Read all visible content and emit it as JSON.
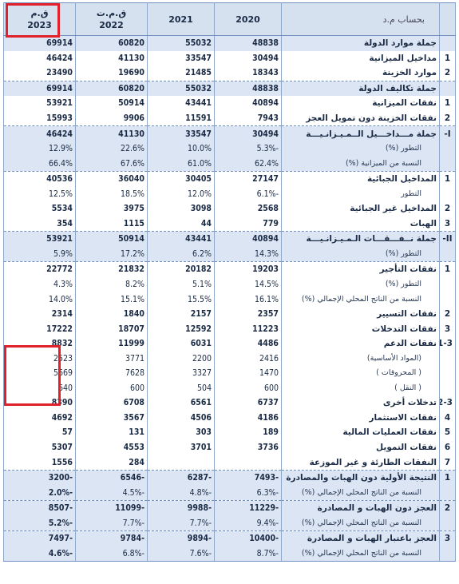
{
  "header": {
    "label": "بحساب م.د",
    "years": [
      {
        "top": "",
        "bottom": "2020"
      },
      {
        "top": "",
        "bottom": "2021"
      },
      {
        "top": "ق.م.ت",
        "bottom": "2022"
      },
      {
        "top": "ق.م",
        "bottom": "2023"
      }
    ]
  },
  "rows": [
    {
      "idx": "",
      "label": "جملة موارد الدولة",
      "v": [
        "48838",
        "55032",
        "60820",
        "69914"
      ],
      "style": "bold shade"
    },
    {
      "idx": "1",
      "label": "مداخيل الميزانية",
      "v": [
        "30494",
        "33547",
        "41130",
        "46424"
      ],
      "style": "bold"
    },
    {
      "idx": "2",
      "label": "موارد الخزينة",
      "v": [
        "18343",
        "21485",
        "19690",
        "23490"
      ],
      "style": "bold dash"
    },
    {
      "idx": "",
      "label": "جملة تكاليف الدولة",
      "v": [
        "48838",
        "55032",
        "60820",
        "69914"
      ],
      "style": "bold shade"
    },
    {
      "idx": "1",
      "label": "نفقات الميزانية",
      "v": [
        "40894",
        "43441",
        "50914",
        "53921"
      ],
      "style": "bold"
    },
    {
      "idx": "2",
      "label": "نفقات الخزينة دون تمويل العجز",
      "v": [
        "7943",
        "11591",
        "9906",
        "15993"
      ],
      "style": "bold dash"
    },
    {
      "idx": "I-",
      "label": "جملة مـــداخـــيل الــمـيـزانـيـــة",
      "v": [
        "30494",
        "33547",
        "41130",
        "46424"
      ],
      "style": "bold shade"
    },
    {
      "idx": "",
      "label": "التطور (%)",
      "v": [
        "-5.3%",
        "10.0%",
        "22.6%",
        "12.9%"
      ],
      "style": "sub shade"
    },
    {
      "idx": "",
      "label": "النسبة من الميزانية (%)",
      "v": [
        "62.4%",
        "61.0%",
        "67.6%",
        "66.4%"
      ],
      "style": "sub shade dash"
    },
    {
      "idx": "1",
      "label": "المداخيل الجبائية",
      "v": [
        "27147",
        "30405",
        "36040",
        "40536"
      ],
      "style": "bold"
    },
    {
      "idx": "",
      "label": "التطور",
      "v": [
        "-6.1%",
        "12.0%",
        "18.5%",
        "12.5%"
      ],
      "style": "sub"
    },
    {
      "idx": "2",
      "label": "المداخيل غير الجبائية",
      "v": [
        "2568",
        "3098",
        "3975",
        "5534"
      ],
      "style": "bold"
    },
    {
      "idx": "3",
      "label": "الهبات",
      "v": [
        "779",
        "44",
        "1115",
        "354"
      ],
      "style": "bold dash"
    },
    {
      "idx": "II-",
      "label": "جملة نــفـــقـــات الـمـيـزانـيـــة",
      "v": [
        "40894",
        "43441",
        "50914",
        "53921"
      ],
      "style": "bold shade"
    },
    {
      "idx": "",
      "label": "التطور (%)",
      "v": [
        "14.3%",
        "6.2%",
        "17.2%",
        "5.9%"
      ],
      "style": "sub shade dash"
    },
    {
      "idx": "1",
      "label": "نفقات التأجير",
      "v": [
        "19203",
        "20182",
        "21832",
        "22772"
      ],
      "style": "bold"
    },
    {
      "idx": "",
      "label": "التطور (%)",
      "v": [
        "14.5%",
        "5.1%",
        "8.2%",
        "4.3%"
      ],
      "style": "sub"
    },
    {
      "idx": "",
      "label": "النسبة من الناتج المحلي الإجمالي (%)",
      "v": [
        "16.1%",
        "15.5%",
        "15.1%",
        "14.0%"
      ],
      "style": "sub"
    },
    {
      "idx": "2",
      "label": "نفقات التسيير",
      "v": [
        "2357",
        "2157",
        "1840",
        "2314"
      ],
      "style": "bold"
    },
    {
      "idx": "3",
      "label": "نفقات التدخلات",
      "v": [
        "11223",
        "12592",
        "18707",
        "17222"
      ],
      "style": "bold"
    },
    {
      "idx": "1-3",
      "label": "نفقات الدعم",
      "v": [
        "4486",
        "6031",
        "11999",
        "8832"
      ],
      "style": "bold"
    },
    {
      "idx": "",
      "label": "(المواد الأساسية)",
      "v": [
        "2416",
        "2200",
        "3771",
        "2523"
      ],
      "style": "sub"
    },
    {
      "idx": "",
      "label": "( المحروقات )",
      "v": [
        "1470",
        "3327",
        "7628",
        "5669"
      ],
      "style": "sub"
    },
    {
      "idx": "",
      "label": "( النقل )",
      "v": [
        "600",
        "504",
        "600",
        "640"
      ],
      "style": "sub"
    },
    {
      "idx": "2-3",
      "label": "تدخلات أخرى",
      "v": [
        "6737",
        "6561",
        "6708",
        "8390"
      ],
      "style": "bold"
    },
    {
      "idx": "4",
      "label": "نفقات الاستثمار",
      "v": [
        "4186",
        "4506",
        "3567",
        "4692"
      ],
      "style": "bold"
    },
    {
      "idx": "5",
      "label": "نفقات العمليات المالية",
      "v": [
        "189",
        "303",
        "131",
        "57"
      ],
      "style": "bold"
    },
    {
      "idx": "6",
      "label": "نفقات التمويل",
      "v": [
        "3736",
        "3701",
        "4553",
        "5307"
      ],
      "style": "bold"
    },
    {
      "idx": "7",
      "label": "النفقات الطارئة و غير الموزعة",
      "v": [
        "",
        "",
        "284",
        "1556"
      ],
      "style": "bold dash"
    },
    {
      "idx": "1",
      "label": "النتيجة الأولية دون الهبات والمصادرة",
      "v": [
        "-7493",
        "-6287",
        "-6546",
        "-3200"
      ],
      "style": "bold shade"
    },
    {
      "idx": "",
      "label": "النسبة من الناتج المحلي الإجمالي (%)",
      "v": [
        "-6.3%",
        "-4.8%",
        "-4.5%",
        "-2.0%"
      ],
      "style": "sub shade dash last-bold"
    },
    {
      "idx": "2",
      "label": "العجز دون الهبات و المصادرة",
      "v": [
        "-11229",
        "-9988",
        "-11099",
        "-8507"
      ],
      "style": "bold shade"
    },
    {
      "idx": "",
      "label": "النسبة من الناتج المحلي الإجمالي (%)",
      "v": [
        "-9.4%",
        "-7.7%",
        "-7.7%",
        "-5.2%"
      ],
      "style": "sub shade dash last-bold"
    },
    {
      "idx": "3",
      "label": "العجز باعتبار الهبات و المصادرة",
      "v": [
        "-10400",
        "-9894",
        "-9784",
        "-7497"
      ],
      "style": "bold shade"
    },
    {
      "idx": "",
      "label": "النسبة من الناتج المحلي الإجمالي (%)",
      "v": [
        "-8.7%",
        "-7.6%",
        "-6.8%",
        "-4.6%"
      ],
      "style": "sub shade lastrow last-bold"
    }
  ]
}
